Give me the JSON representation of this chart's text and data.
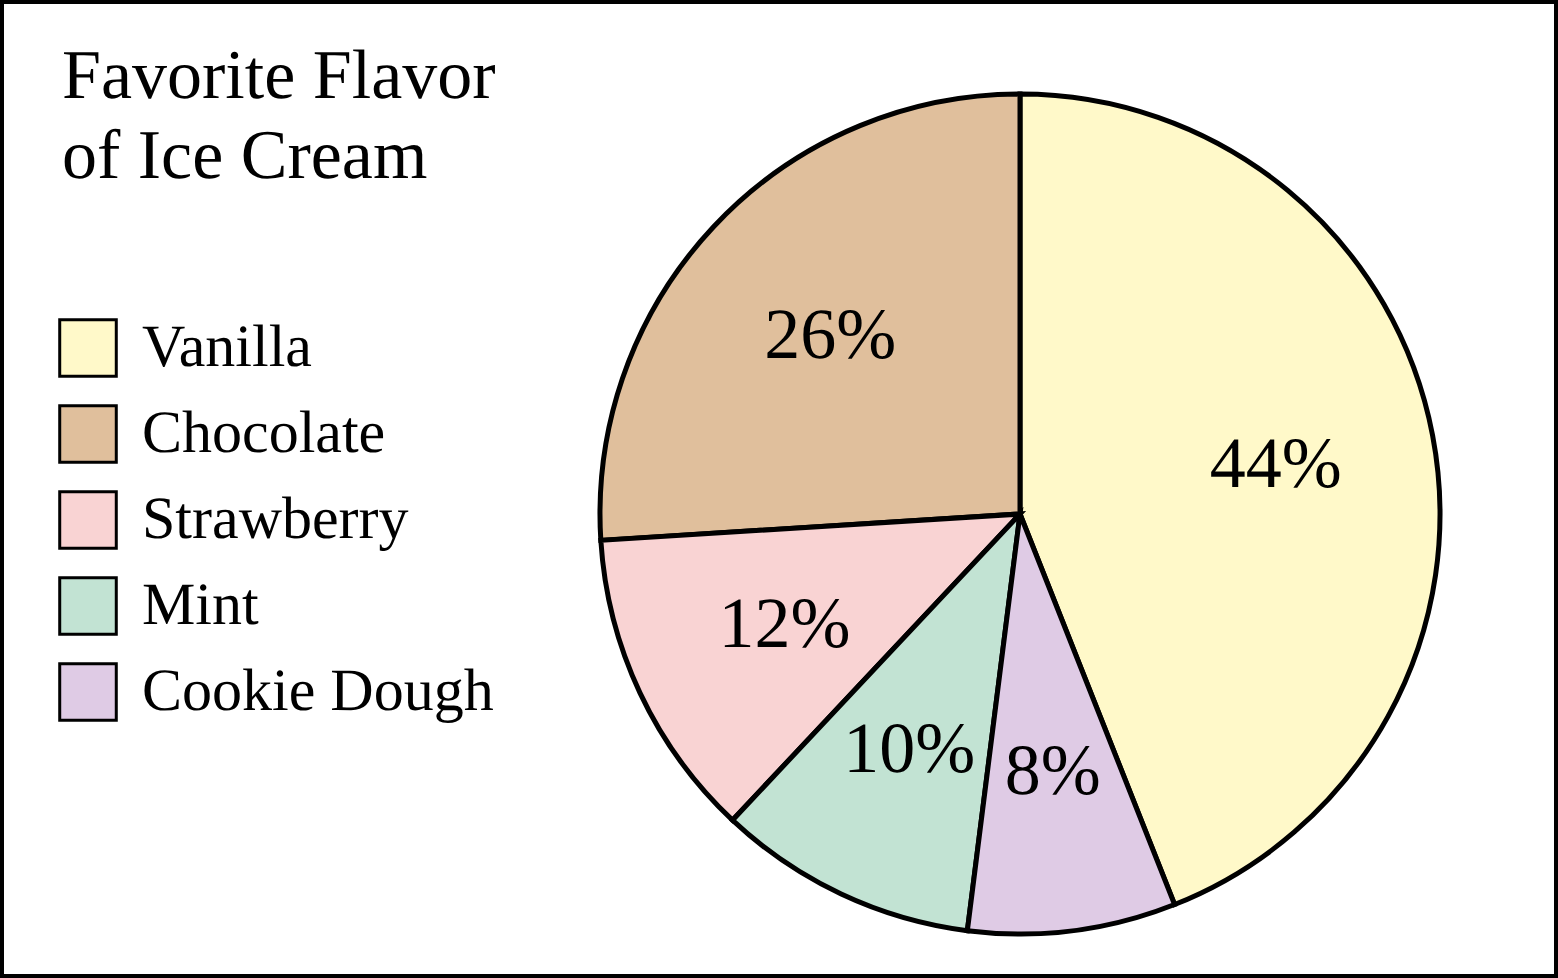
{
  "chart_data": {
    "type": "pie",
    "title": "Favorite Flavor of Ice Cream",
    "categories": [
      "Vanilla",
      "Chocolate",
      "Strawberry",
      "Mint",
      "Cookie Dough"
    ],
    "values": [
      44,
      26,
      12,
      10,
      8
    ],
    "value_labels": [
      "44%",
      "26%",
      "12%",
      "10%",
      "8%"
    ],
    "colors": [
      "#fff9c9",
      "#e0bf9c",
      "#f9d3d3",
      "#c2e3d3",
      "#dfcbe5"
    ],
    "legend": "left"
  }
}
